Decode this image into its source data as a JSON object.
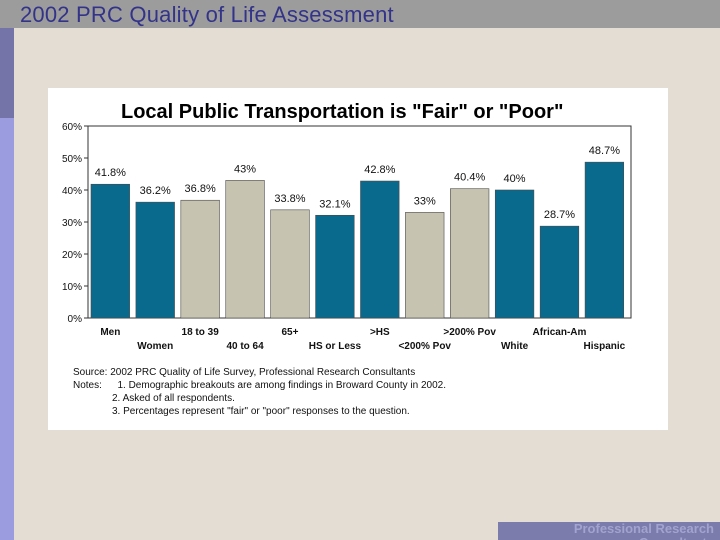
{
  "slide": {
    "title": "2002 PRC Quality of Life Assessment",
    "footer": "Professional Research Consultants"
  },
  "colors": {
    "blue": "#0a6a8e",
    "tan": "#c6c4b1",
    "background": "#e3ddd4"
  },
  "chart_data": {
    "type": "bar",
    "title": "Local Public Transportation is \"Fair\" or \"Poor\"",
    "categories": [
      "Men",
      "Women",
      "18 to 39",
      "40 to 64",
      "65+",
      "HS or Less",
      ">HS",
      "<200% Pov",
      ">200% Pov",
      "White",
      "African-Am",
      "Hispanic"
    ],
    "values": [
      41.8,
      36.2,
      36.8,
      43,
      33.8,
      32.1,
      42.8,
      33,
      40.4,
      40,
      28.7,
      48.7
    ],
    "value_labels": [
      "41.8%",
      "36.2%",
      "36.8%",
      "43%",
      "33.8%",
      "32.1%",
      "42.8%",
      "33%",
      "40.4%",
      "40%",
      "28.7%",
      "48.7%"
    ],
    "bar_colors": [
      "blue",
      "blue",
      "tan",
      "tan",
      "tan",
      "blue",
      "blue",
      "tan",
      "tan",
      "blue",
      "blue",
      "blue"
    ],
    "yticks": [
      "0%",
      "10%",
      "20%",
      "30%",
      "40%",
      "50%",
      "60%"
    ],
    "ylim": [
      0,
      60
    ],
    "grid": false,
    "legend": "none"
  },
  "notes": {
    "source": "Source: 2002 PRC Quality of Life Survey, Professional Research Consultants",
    "notes_label": "Notes:",
    "note1": "1. Demographic breakouts are among findings in Broward County in 2002.",
    "note2": "2. Asked of all respondents.",
    "note3": "3.  Percentages represent \"fair\" or \"poor\" responses to the question."
  }
}
